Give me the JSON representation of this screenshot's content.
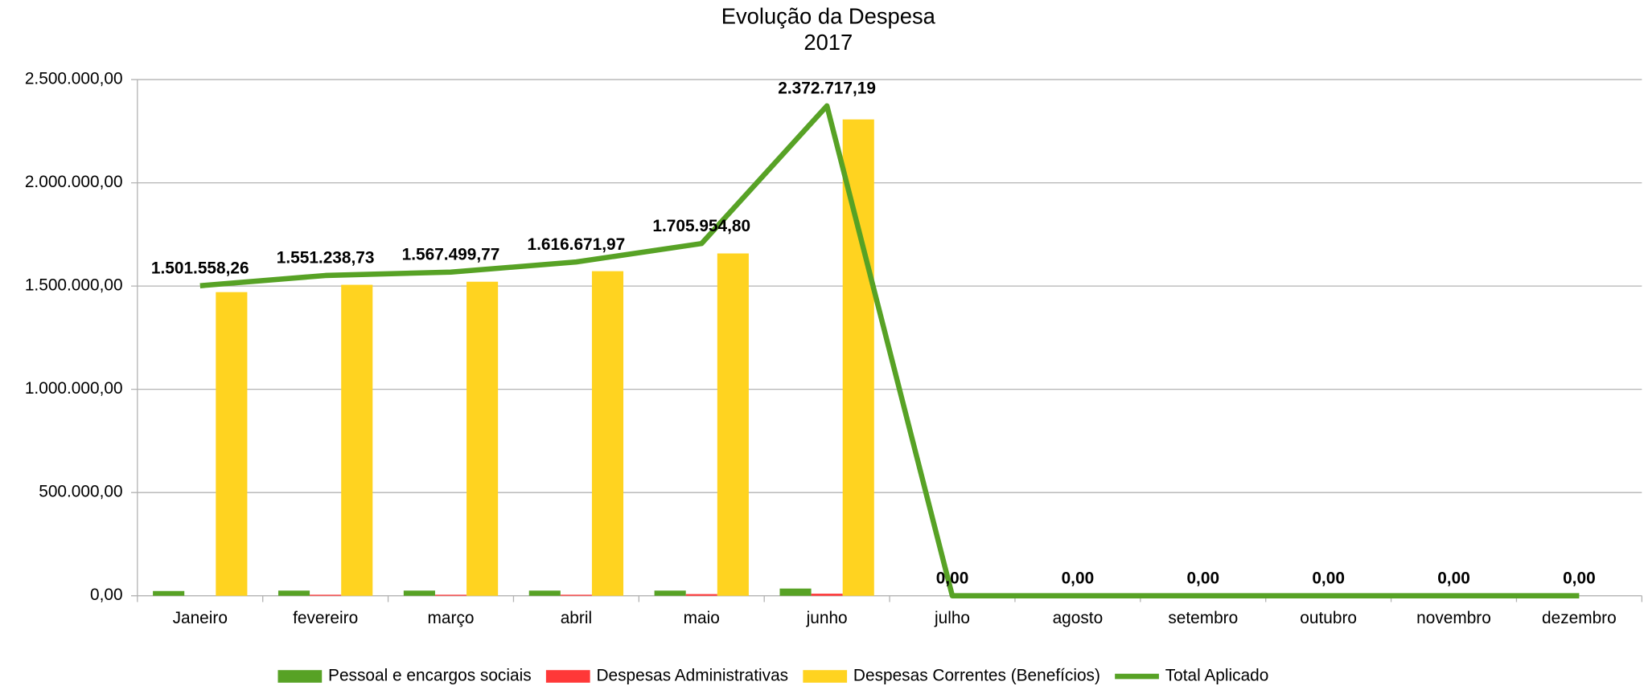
{
  "chart_data": {
    "type": "bar-line",
    "title": "Evolução da Despesa",
    "subtitle": "2017",
    "categories": [
      "Janeiro",
      "fevereiro",
      "março",
      "abril",
      "maio",
      "junho",
      "julho",
      "agosto",
      "setembro",
      "outubro",
      "novembro",
      "dezembro"
    ],
    "series": [
      {
        "name": "Pessoal e encargos sociais",
        "type": "bar",
        "color": "#57a225",
        "values": [
          23000,
          25000,
          25000,
          25000,
          25000,
          35000,
          0,
          0,
          0,
          0,
          0,
          0
        ]
      },
      {
        "name": "Despesas Administrativas",
        "type": "bar",
        "color": "#ff3838",
        "values": [
          0,
          5000,
          5000,
          5000,
          8000,
          10000,
          0,
          0,
          0,
          0,
          0,
          0
        ]
      },
      {
        "name": "Despesas Correntes (Benefícios)",
        "type": "bar",
        "color": "#ffd320",
        "values": [
          1470600,
          1506000,
          1521000,
          1572000,
          1658000,
          2307000,
          0,
          0,
          0,
          0,
          0,
          0
        ]
      },
      {
        "name": "Total Aplicado",
        "type": "line",
        "color": "#57a225",
        "values": [
          1501558.26,
          1551238.73,
          1567499.77,
          1616671.97,
          1705954.8,
          2372717.19,
          0,
          0,
          0,
          0,
          0,
          0
        ],
        "value_labels": [
          "1.501.558,26",
          "1.551.238,73",
          "1.567.499,77",
          "1.616.671,97",
          "1.705.954,80",
          "2.372.717,19",
          "0,00",
          "0,00",
          "0,00",
          "0,00",
          "0,00",
          "0,00"
        ]
      }
    ],
    "ylim": [
      0,
      2500000
    ],
    "yticks": [
      {
        "value": 0,
        "label": "0,00"
      },
      {
        "value": 500000,
        "label": "500.000,00"
      },
      {
        "value": 1000000,
        "label": "1.000.000,00"
      },
      {
        "value": 1500000,
        "label": "1.500.000,00"
      },
      {
        "value": 2000000,
        "label": "2.000.000,00"
      },
      {
        "value": 2500000,
        "label": "2.500.000,00"
      }
    ],
    "grid": true,
    "legend": "bottom"
  }
}
